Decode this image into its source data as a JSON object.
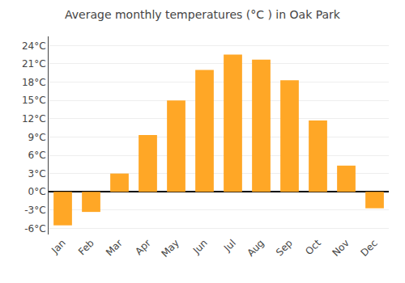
{
  "chart_data": {
    "type": "bar",
    "title": "Average monthly temperatures (°C ) in Oak Park",
    "categories": [
      "Jan",
      "Feb",
      "Mar",
      "Apr",
      "May",
      "Jun",
      "Jul",
      "Aug",
      "Sep",
      "Oct",
      "Nov",
      "Dec"
    ],
    "values": [
      -5.5,
      -3.3,
      3.0,
      9.3,
      15.0,
      20.0,
      22.5,
      21.7,
      18.3,
      11.7,
      4.3,
      -2.7
    ],
    "color": "#FFA726",
    "ylim": [
      -7,
      25.5
    ],
    "yticks": [
      {
        "value": -6,
        "label": "-6°C"
      },
      {
        "value": -3,
        "label": "-3°C"
      },
      {
        "value": 0,
        "label": "0°C"
      },
      {
        "value": 3,
        "label": "3°C"
      },
      {
        "value": 6,
        "label": "6°C"
      },
      {
        "value": 9,
        "label": "9°C"
      },
      {
        "value": 12,
        "label": "12°C"
      },
      {
        "value": 15,
        "label": "15°C"
      },
      {
        "value": 18,
        "label": "18°C"
      },
      {
        "value": 21,
        "label": "21°C"
      },
      {
        "value": 24,
        "label": "24°C"
      }
    ],
    "grid": true
  }
}
